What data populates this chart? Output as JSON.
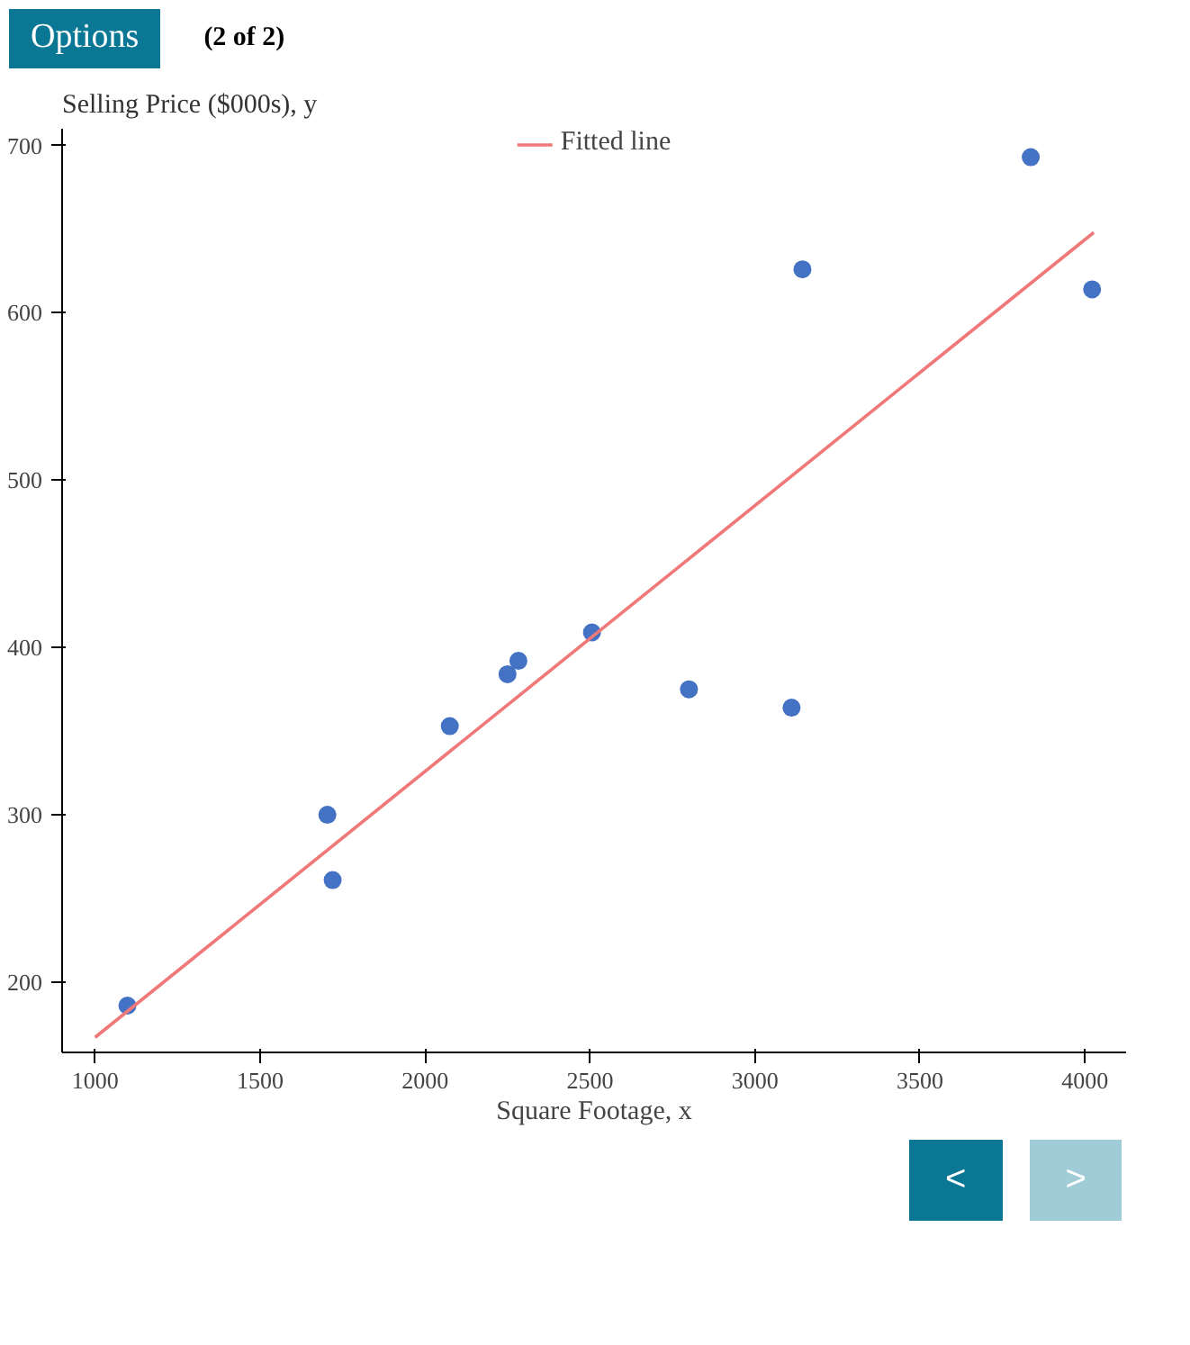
{
  "chart_data": {
    "type": "scatter",
    "xlabel": "Square Footage, x",
    "ylabel": "Selling Price ($000s), y",
    "annotations": [
      "Options",
      "(2 of 2)",
      "<",
      ">"
    ],
    "series": [
      {
        "color": "#4472c4",
        "marker": "circle",
        "x": [
          1098,
          1704,
          1720,
          2075,
          2250,
          2283,
          2506,
          2800,
          3111,
          3144,
          3836,
          4022
        ],
        "values": [
          186,
          300,
          261,
          353,
          384,
          392,
          409,
          375,
          364,
          626,
          693,
          614
        ]
      },
      {
        "type": "line",
        "name": "Fitted line",
        "color": "#f07878",
        "marker": "none",
        "x": [
          1000,
          4027
        ],
        "values": [
          167,
          648
        ]
      }
    ],
    "xlim": [
      900,
      4125
    ],
    "ylim": [
      158,
      710
    ],
    "xticks": [
      1000,
      1500,
      2000,
      2500,
      3000,
      3500,
      4000
    ],
    "yticks": [
      200,
      300,
      400,
      500,
      600,
      700
    ],
    "grid": false,
    "legend": "top"
  }
}
